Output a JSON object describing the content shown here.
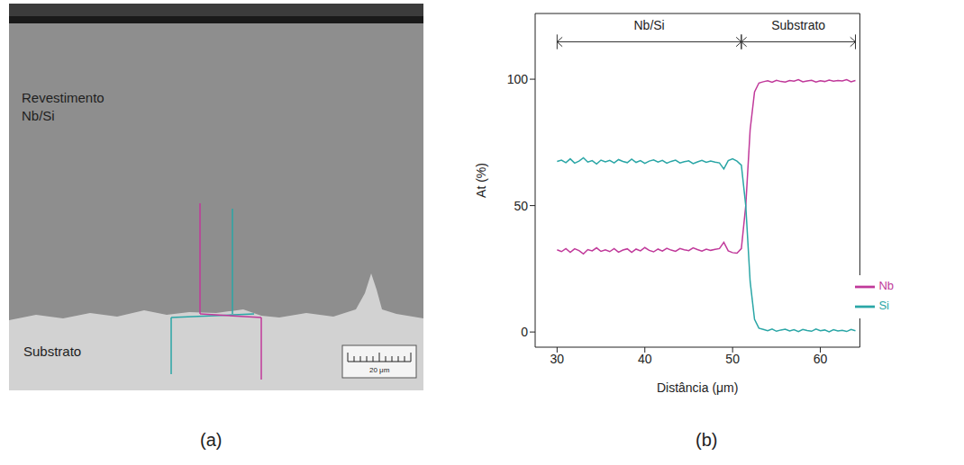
{
  "panel_labels": [
    "(a)",
    "(b)"
  ],
  "micrograph": {
    "coating_label": [
      "Revestimento",
      "Nb/Si"
    ],
    "substrate_label": "Substrato",
    "scale_bar": "20 μm"
  },
  "chart_data": {
    "type": "line",
    "x_label": "Distância (μm)",
    "y_label": "At (%)",
    "xlim": [
      27.5,
      64.5
    ],
    "xticks": [
      30,
      40,
      50,
      60
    ],
    "ylim": [
      -6,
      126
    ],
    "yticks": [
      0,
      50,
      100
    ],
    "legend": "lower right",
    "annotations": [
      {
        "text": "Nb/Si",
        "x": [
          30,
          51
        ]
      },
      {
        "text": "Substrato",
        "x": [
          51,
          64
        ]
      }
    ],
    "x": [
      30,
      30.5,
      31,
      31.5,
      32,
      32.5,
      33,
      33.5,
      34,
      34.5,
      35,
      35.5,
      36,
      36.5,
      37,
      37.5,
      38,
      38.5,
      39,
      39.5,
      40,
      40.5,
      41,
      41.5,
      42,
      42.5,
      43,
      43.5,
      44,
      44.5,
      45,
      45.5,
      46,
      46.5,
      47,
      47.5,
      48,
      48.5,
      49,
      49.5,
      50,
      50.5,
      51,
      51.5,
      52,
      52.5,
      53,
      53.5,
      54,
      54.5,
      55,
      55.5,
      56,
      56.5,
      57,
      57.5,
      58,
      58.5,
      59,
      59.5,
      60,
      60.5,
      61,
      61.5,
      62,
      62.5,
      63,
      63.5,
      64
    ],
    "series": [
      {
        "name": "Nb",
        "color": "#c0399a",
        "values": [
          32.5,
          31.8,
          33,
          31.5,
          32.9,
          32.2,
          30.9,
          32.6,
          32.1,
          33.3,
          31.9,
          32.5,
          31.8,
          33,
          31.6,
          32.4,
          32.9,
          31.5,
          32.8,
          32.1,
          33.4,
          32.3,
          31.7,
          32.8,
          32,
          33.1,
          32.4,
          31.9,
          33,
          32.5,
          32.2,
          33.3,
          32.6,
          32,
          32.8,
          32.3,
          32.7,
          33,
          35.5,
          32.1,
          31.4,
          31.2,
          33,
          50,
          80,
          95,
          98.5,
          99,
          99.4,
          98.8,
          99.6,
          99.1,
          98.9,
          99.5,
          99.2,
          99.8,
          99,
          99.3,
          99.6,
          98.9,
          99.4,
          99.1,
          99.7,
          99.2,
          99.5,
          99.3,
          99.8,
          99,
          99.5
        ]
      },
      {
        "name": "Si",
        "color": "#2aa6a6",
        "values": [
          67.5,
          68,
          67,
          68.5,
          66.8,
          67.6,
          68.9,
          67.2,
          67.8,
          66.5,
          68,
          67.3,
          67.9,
          66.9,
          68.2,
          67.5,
          67,
          68.4,
          67.1,
          67.8,
          66.7,
          67.6,
          68.1,
          67.2,
          67.9,
          66.8,
          67.5,
          68,
          66.9,
          67.4,
          67.7,
          66.6,
          67.3,
          67.9,
          67.1,
          67.6,
          67.2,
          66.9,
          64.5,
          67.8,
          68.5,
          67.6,
          66,
          50,
          20,
          5,
          1.5,
          1,
          0.5,
          1.2,
          0.3,
          0.8,
          1.1,
          0.4,
          0.9,
          0.2,
          1,
          0.6,
          0.3,
          1.2,
          0.5,
          0.8,
          0.1,
          0.9,
          0.4,
          0.7,
          0.2,
          1,
          0.5
        ]
      }
    ]
  }
}
